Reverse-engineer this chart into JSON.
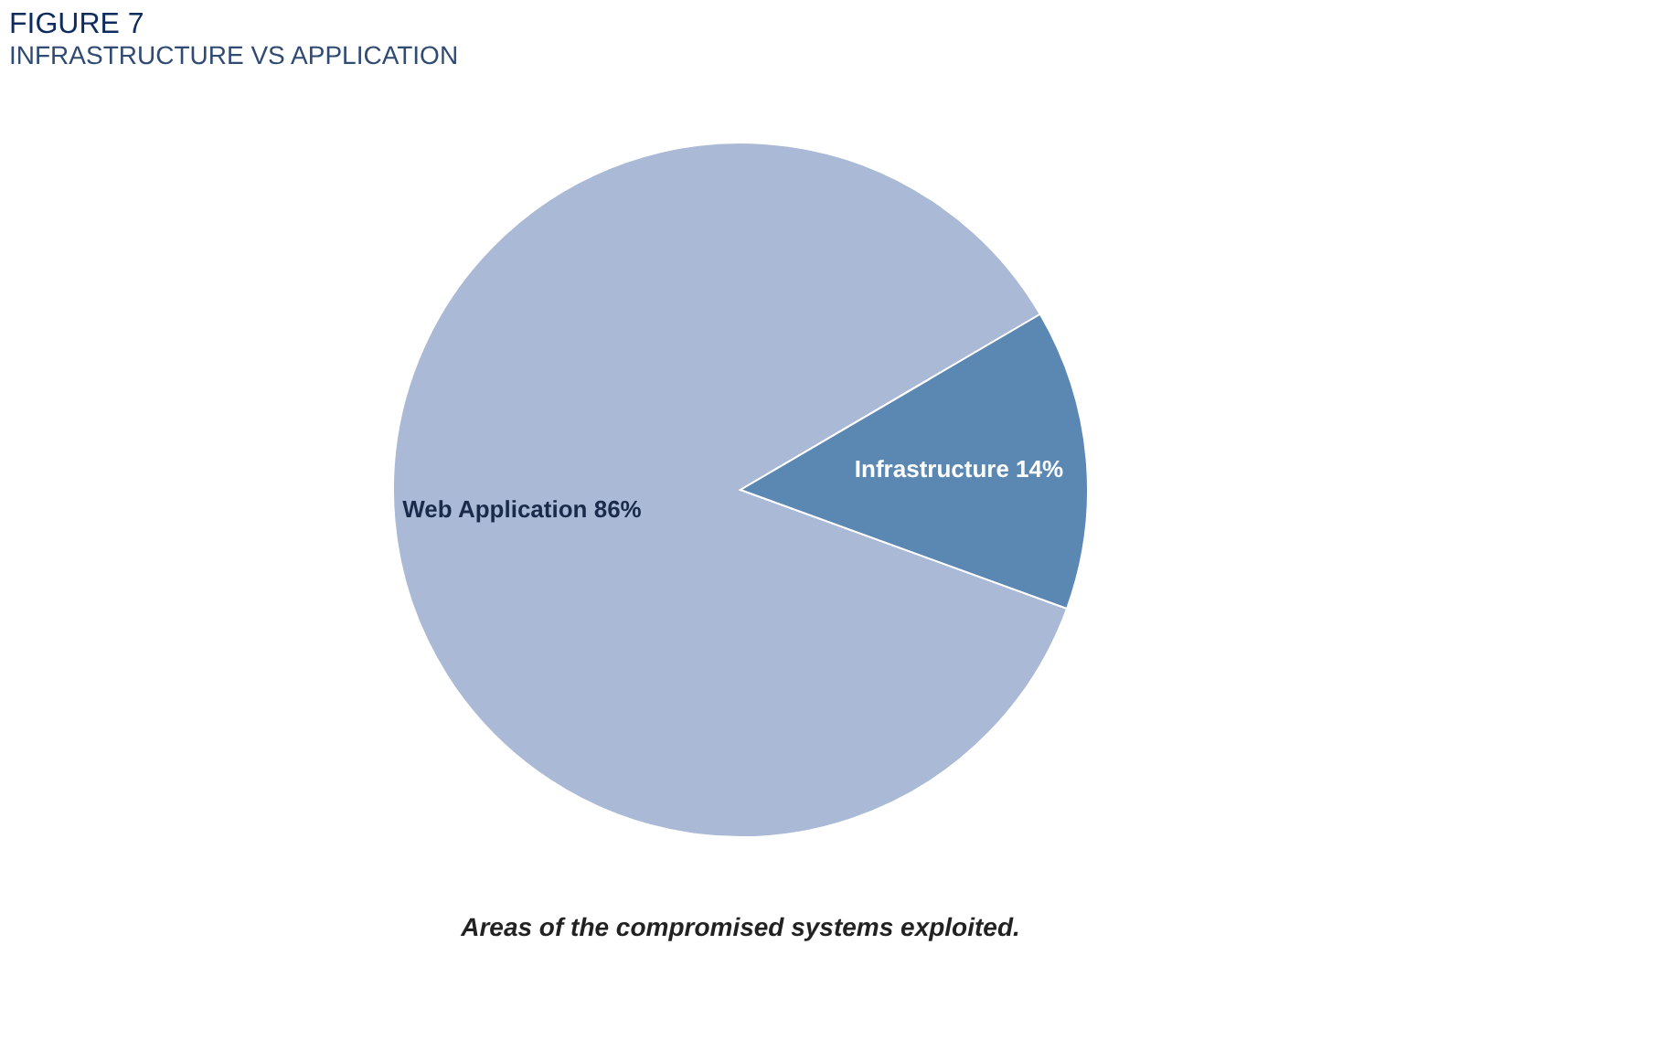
{
  "chart_data": {
    "type": "pie",
    "title": "FIGURE 7",
    "subtitle": "INFRASTRUCTURE VS APPLICATION",
    "categories": [
      "Web Application",
      "Infrastructure"
    ],
    "values": [
      86,
      14
    ],
    "value_labels": [
      "86%",
      "14%"
    ],
    "colors": [
      "#a9b9d6",
      "#5b87b3"
    ],
    "legend": false,
    "annotations": [
      "Areas of the compromised systems exploited."
    ]
  }
}
